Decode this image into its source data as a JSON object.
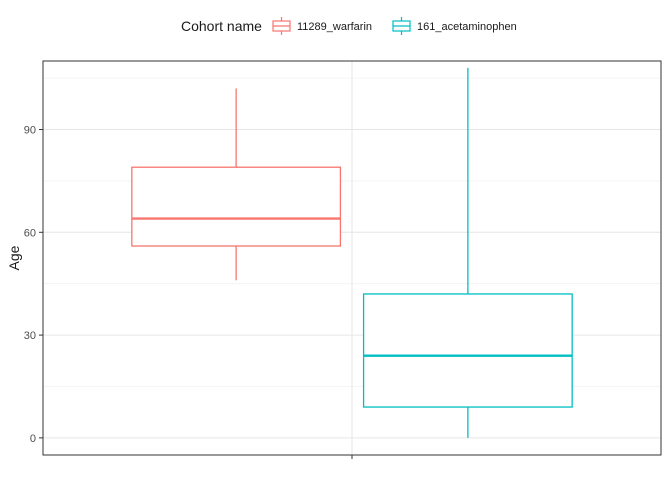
{
  "chart_data": {
    "type": "boxplot",
    "title": "",
    "xlabel": "",
    "ylabel": "Age",
    "ylim": [
      -5,
      110
    ],
    "yticks": [
      0,
      30,
      60,
      90
    ],
    "grid": true,
    "legend": {
      "title": "Cohort name",
      "placement": "top"
    },
    "series": [
      {
        "name": "11289_warfarin",
        "color": "#F8766D",
        "whisker_low": 46,
        "q1": 56,
        "median": 64,
        "q3": 79,
        "whisker_high": 102
      },
      {
        "name": "161_acetaminophen",
        "color": "#00BFC4",
        "whisker_low": 0,
        "q1": 9,
        "median": 24,
        "q3": 42,
        "whisker_high": 108
      }
    ]
  }
}
